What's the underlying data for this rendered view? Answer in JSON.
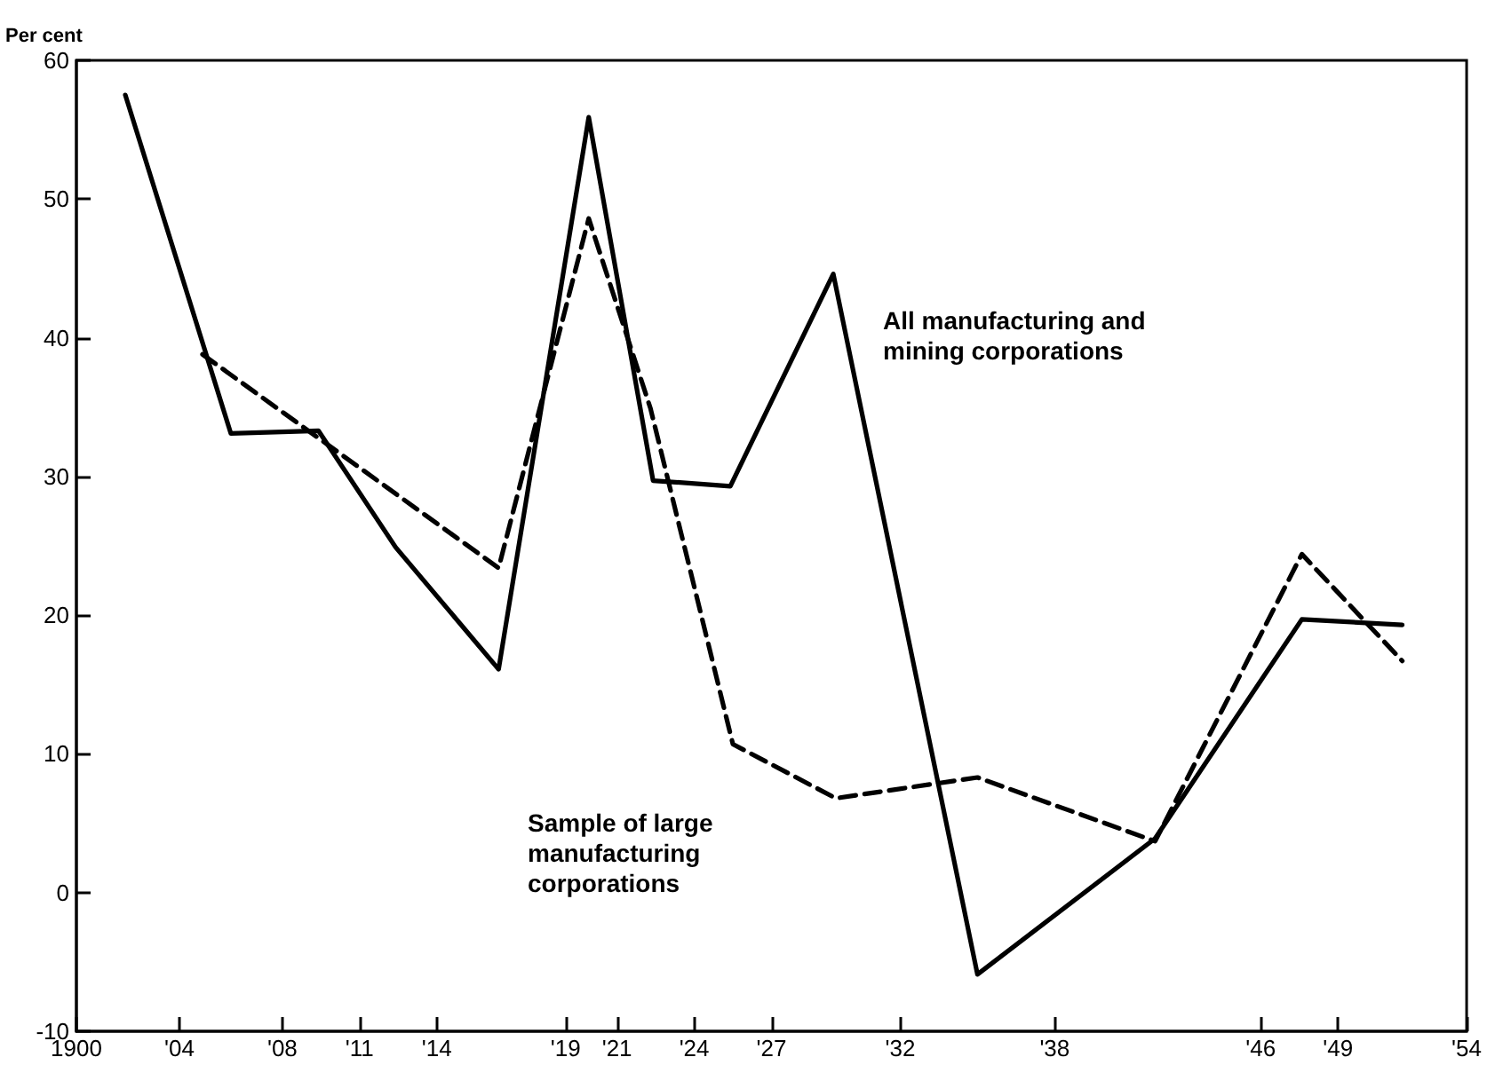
{
  "chart_data": {
    "type": "line",
    "ylabel": "Per cent",
    "xlim": [
      1900,
      1954
    ],
    "ylim": [
      -10,
      60
    ],
    "xticks": [
      {
        "value": 1900,
        "label": "1900"
      },
      {
        "value": 1904,
        "label": "'04"
      },
      {
        "value": 1908,
        "label": "'08"
      },
      {
        "value": 1911,
        "label": "'11"
      },
      {
        "value": 1914,
        "label": "'14"
      },
      {
        "value": 1919,
        "label": "'19"
      },
      {
        "value": 1921,
        "label": "'21"
      },
      {
        "value": 1924,
        "label": "'24"
      },
      {
        "value": 1927,
        "label": "'27"
      },
      {
        "value": 1932,
        "label": "'32"
      },
      {
        "value": 1938,
        "label": "'38"
      },
      {
        "value": 1946,
        "label": "'46"
      },
      {
        "value": 1949,
        "label": "'49"
      },
      {
        "value": 1954,
        "label": "'54"
      }
    ],
    "yticks": [
      -10,
      0,
      10,
      20,
      30,
      40,
      50,
      60
    ],
    "grid": false,
    "legend": false,
    "marker": "none",
    "series": [
      {
        "name": "All manufacturing and\nmining corporations",
        "color": "#000000",
        "line_style": "solid",
        "x": [
          1901.9,
          1906,
          1909.4,
          1912.4,
          1916.4,
          1919.9,
          1922.4,
          1925.4,
          1929.4,
          1935,
          1941.9,
          1947.6,
          1951.5
        ],
        "values": [
          57.5,
          33.1,
          33.3,
          24.9,
          16.1,
          55.9,
          29.7,
          29.3,
          44.6,
          -5.9,
          3.9,
          19.7,
          19.3
        ]
      },
      {
        "name": "Sample of large\nmanufacturing\ncorporations",
        "color": "#000000",
        "line_style": "dashed",
        "x": [
          1904.9,
          1916.4,
          1919.9,
          1922.3,
          1925.5,
          1929.5,
          1935,
          1941.9,
          1947.6,
          1951.5
        ],
        "values": [
          38.8,
          23.4,
          48.6,
          34.9,
          10.7,
          6.8,
          8.3,
          3.7,
          24.4,
          16.7
        ]
      }
    ]
  }
}
